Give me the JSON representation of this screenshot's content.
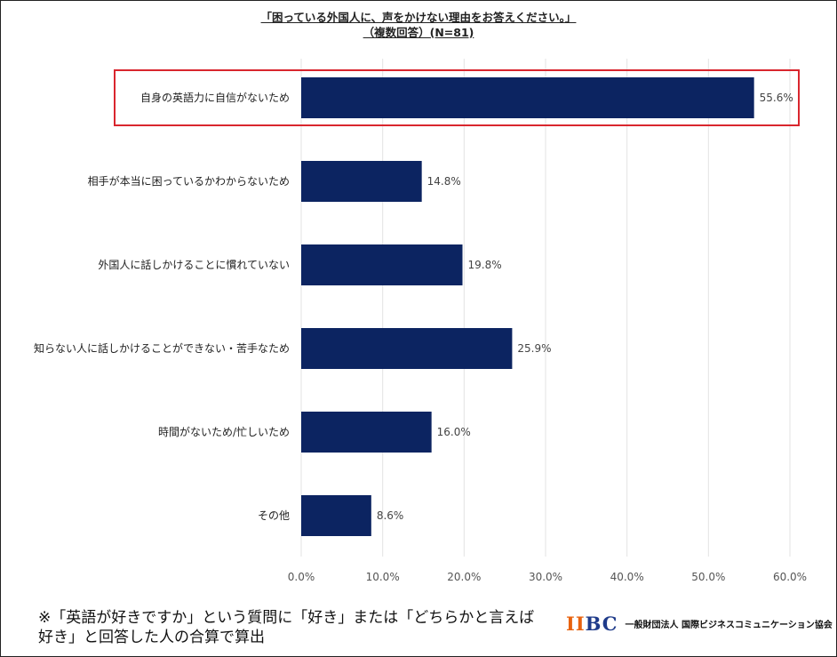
{
  "title": {
    "line1": "「困っている外国人に、声をかけない理由をお答えください。」",
    "line2": "（複数回答）(N=81)"
  },
  "chart_data": {
    "type": "bar",
    "orientation": "horizontal",
    "categories": [
      "自身の英語力に自信がないため",
      "相手が本当に困っているかわからないため",
      "外国人に話しかけることに慣れていない",
      "知らない人に話しかけることができない・苦手なため",
      "時間がないため/忙しいため",
      "その他"
    ],
    "values": [
      55.6,
      14.8,
      19.8,
      25.9,
      16.0,
      8.6
    ],
    "value_labels": [
      "55.6%",
      "14.8%",
      "19.8%",
      "25.9%",
      "16.0%",
      "8.6%"
    ],
    "xlim": [
      0,
      60
    ],
    "xticks": [
      "0.0%",
      "10.0%",
      "20.0%",
      "30.0%",
      "40.0%",
      "50.0%",
      "60.0%"
    ],
    "bar_color": "#0c2461",
    "highlight_category_index": 0,
    "highlight_color": "#d9262e",
    "grid": true
  },
  "footnote": "※「英語が好きですか」という質問に「好き」または「どちらかと言えば好き」と回答した人の合算で算出",
  "logo": {
    "mark_letters": [
      "I",
      "I",
      "B",
      "C"
    ],
    "org_name": "一般財団法人 国際ビジネスコミュニケーション協会"
  }
}
